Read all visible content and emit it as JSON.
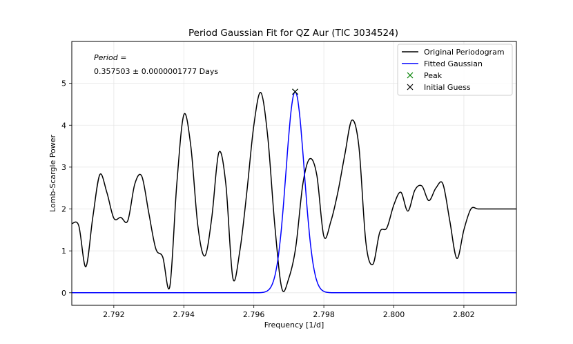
{
  "chart_data": {
    "type": "line",
    "title": "Period Gaussian Fit for QZ Aur (TIC 3034524)",
    "xlabel": "Frequency [1/d]",
    "ylabel": "Lomb-Scargle Power",
    "xlim": [
      2.7908,
      2.8035
    ],
    "ylim": [
      -0.3,
      6.0
    ],
    "xticks": [
      2.792,
      2.794,
      2.796,
      2.798,
      2.8,
      2.802
    ],
    "xtick_labels": [
      "2.792",
      "2.794",
      "2.796",
      "2.798",
      "2.800",
      "2.802"
    ],
    "yticks": [
      0,
      1,
      2,
      3,
      4,
      5
    ],
    "ytick_labels": [
      "0",
      "1",
      "2",
      "3",
      "4",
      "5"
    ],
    "grid": true,
    "legend_position": "top-right",
    "annotation": {
      "line1": "Period =",
      "line2": "0.357503 ± 0.0000001777 Days"
    },
    "series": [
      {
        "name": "Original Periodogram",
        "color": "#000000",
        "style": "line",
        "x": [
          2.7908,
          2.791,
          2.7912,
          2.7914,
          2.7916,
          2.7918,
          2.792,
          2.7922,
          2.7924,
          2.7926,
          2.7928,
          2.793,
          2.7932,
          2.7934,
          2.7936,
          2.7938,
          2.794,
          2.7942,
          2.7944,
          2.7946,
          2.7948,
          2.795,
          2.7952,
          2.7954,
          2.7956,
          2.7958,
          2.796,
          2.7962,
          2.7964,
          2.7966,
          2.7968,
          2.797,
          2.7972,
          2.7974,
          2.7976,
          2.7978,
          2.798,
          2.7982,
          2.7984,
          2.7986,
          2.7988,
          2.799,
          2.7992,
          2.7994,
          2.7996,
          2.7998,
          2.8,
          2.8002,
          2.8004,
          2.8006,
          2.8008,
          2.801,
          2.8012,
          2.8014,
          2.8016,
          2.8018,
          2.802,
          2.8022,
          2.8024,
          2.8026,
          2.8028,
          2.803,
          2.8032,
          2.8034,
          2.8035
        ],
        "y": [
          1.65,
          1.6,
          0.62,
          1.8,
          2.82,
          2.4,
          1.78,
          1.8,
          1.72,
          2.6,
          2.78,
          1.9,
          1.05,
          0.85,
          0.15,
          2.6,
          4.25,
          3.5,
          1.6,
          0.88,
          1.8,
          3.35,
          2.6,
          0.35,
          1.0,
          2.4,
          4.0,
          4.78,
          3.7,
          1.6,
          0.1,
          0.35,
          1.1,
          2.6,
          3.2,
          2.8,
          1.35,
          1.7,
          2.4,
          3.3,
          4.12,
          3.5,
          1.2,
          0.68,
          1.45,
          1.55,
          2.1,
          2.4,
          1.95,
          2.45,
          2.55,
          2.2,
          2.5,
          2.6,
          1.7,
          0.82,
          1.5,
          2.0,
          2.0,
          2.0,
          2.0,
          2.0,
          2.0,
          2.0,
          2.0
        ]
      },
      {
        "name": "Fitted Gaussian",
        "color": "#0000ff",
        "style": "line",
        "gaussian": {
          "amplitude": 4.8,
          "mean": 2.79718,
          "sigma": 0.00026
        }
      },
      {
        "name": "Peak",
        "color": "#008000",
        "style": "marker-x",
        "x": [
          2.79718
        ],
        "y": [
          4.8
        ]
      },
      {
        "name": "Initial Guess",
        "color": "#000000",
        "style": "marker-x",
        "x": [
          2.79718
        ],
        "y": [
          4.8
        ]
      }
    ]
  }
}
